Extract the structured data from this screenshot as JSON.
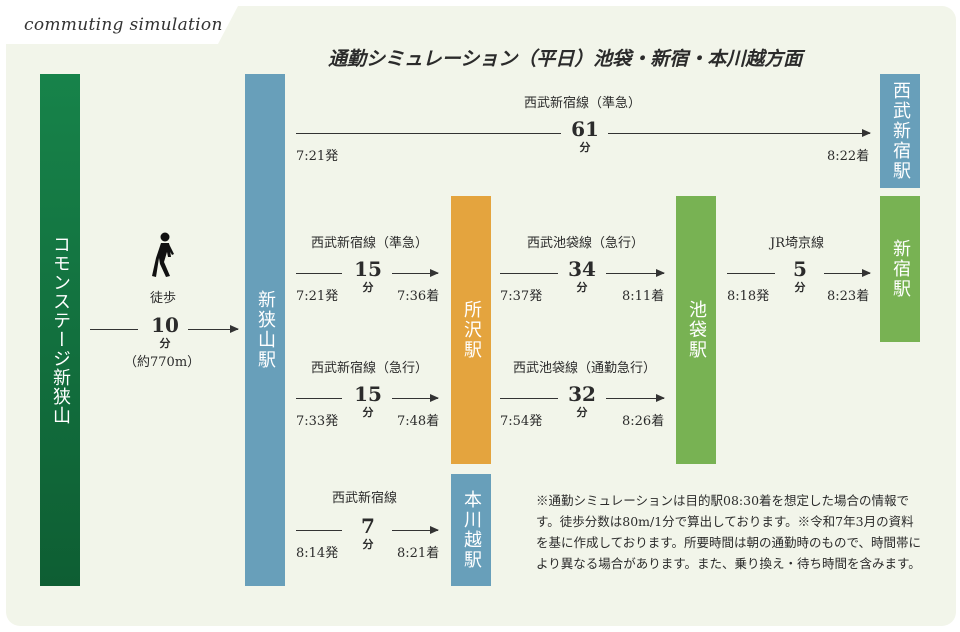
{
  "header": {
    "tab_label": "commuting simulation",
    "title": "通勤シミュレーション（平日）池袋・新宿・本川越方面"
  },
  "stations": {
    "home": "コモンステージ新狭山",
    "shinsayama": "新狭山駅",
    "tokorozawa": "所沢駅",
    "honkawagoe": "本川越駅",
    "ikebukuro": "池袋駅",
    "seibushinjuku": "西武新宿駅",
    "shinjuku": "新宿駅"
  },
  "walk": {
    "label": "徒歩",
    "minutes": "10",
    "unit": "分",
    "distance": "（約770m）",
    "icon": "walking-person-icon"
  },
  "routes": {
    "seibushinjuku_direct": {
      "line": "西武新宿線（準急）",
      "minutes": "61",
      "unit": "分",
      "depart": "7:21発",
      "arrive": "8:22着"
    },
    "to_tokorozawa_1": {
      "line": "西武新宿線（準急）",
      "minutes": "15",
      "unit": "分",
      "depart": "7:21発",
      "arrive": "7:36着"
    },
    "to_tokorozawa_2": {
      "line": "西武新宿線（急行）",
      "minutes": "15",
      "unit": "分",
      "depart": "7:33発",
      "arrive": "7:48着"
    },
    "to_ikebukuro_1": {
      "line": "西武池袋線（急行）",
      "minutes": "34",
      "unit": "分",
      "depart": "7:37発",
      "arrive": "8:11着"
    },
    "to_ikebukuro_2": {
      "line": "西武池袋線（通勤急行）",
      "minutes": "32",
      "unit": "分",
      "depart": "7:54発",
      "arrive": "8:26着"
    },
    "to_shinjuku": {
      "line": "JR埼京線",
      "minutes": "5",
      "unit": "分",
      "depart": "8:18発",
      "arrive": "8:23着"
    },
    "to_honkawagoe": {
      "line": "西武新宿線",
      "minutes": "7",
      "unit": "分",
      "depart": "8:14発",
      "arrive": "8:21着"
    }
  },
  "note": "※通勤シミュレーションは目的駅08:30着を想定した場合の情報です。徒歩分数は80m/1分で算出しております。※令和7年3月の資料を基に作成しております。所要時間は朝の通勤時のもので、時間帯により異なる場合があります。また、乗り換え・待ち時間を含みます。",
  "colors": {
    "background": "#f2f5ea",
    "home_green": "#17834a",
    "seibu_blue": "#689fba",
    "tokorozawa_orange": "#e4a43e",
    "transfer_green": "#78b253"
  }
}
